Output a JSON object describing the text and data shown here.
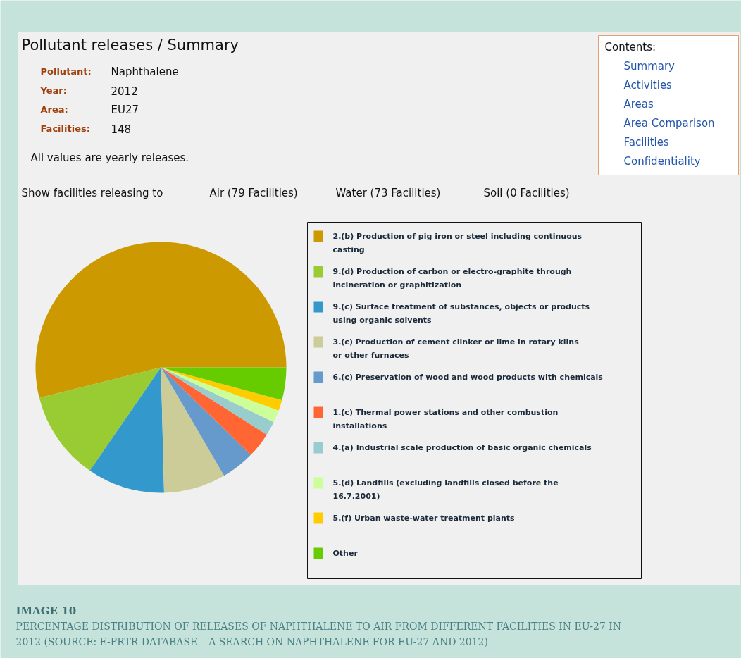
{
  "chart_data": {
    "type": "pie",
    "title": "Pollutant releases / Summary",
    "categories": [
      "2.(b) Production of pig iron or steel including continuous casting",
      "9.(d) Production of carbon or electro-graphite through incineration or graphitization",
      "9.(c) Surface treatment of substances, objects or products using organic solvents",
      "3.(c) Production of cement clinker or lime in rotary kilns or other furnaces",
      "6.(c) Preservation of wood and wood products with chemicals",
      "1.(c) Thermal power stations and other combustion installations",
      "4.(a) Industrial scale production of basic organic chemicals",
      "5.(d) Landfills (excluding landfills closed before the 16.7.2001)",
      "5.(f) Urban waste-water treatment plants",
      "Other"
    ],
    "values": [
      53.9,
      11.5,
      10,
      8,
      4.3,
      3.3,
      1.8,
      1.6,
      1.4,
      4.2
    ],
    "colors": [
      "#cc9900",
      "#99cc33",
      "#3399cc",
      "#cccc99",
      "#6699cc",
      "#ff6633",
      "#99cccc",
      "#ccff99",
      "#ffcc00",
      "#66cc00"
    ],
    "legend": "right",
    "annotations": [
      "Pollutant:",
      "Naphthalene",
      "Year:",
      "2012",
      "Area:",
      "EU27",
      "Facilities:",
      "148",
      "All values are yearly releases.",
      "Contents:",
      "Summary",
      "Activities",
      "Areas",
      "Area Comparison",
      "Facilities",
      "Confidentiality",
      "Show facilities releasing to",
      "Air (79 Facilities)",
      "Water (73 Facilities)",
      "Soil (0 Facilities)",
      "IMAGE 10",
      "PERCENTAGE DISTRIBUTION OF RELEASES OF NAPHTHALENE TO AIR FROM DIFFERENT FACILITIES IN EU-27 IN 2012 (SOURCE: E-PRTR DATABASE – A SEARCH ON NAPHTHALENE FOR EU-27 AND 2012)"
    ]
  }
}
